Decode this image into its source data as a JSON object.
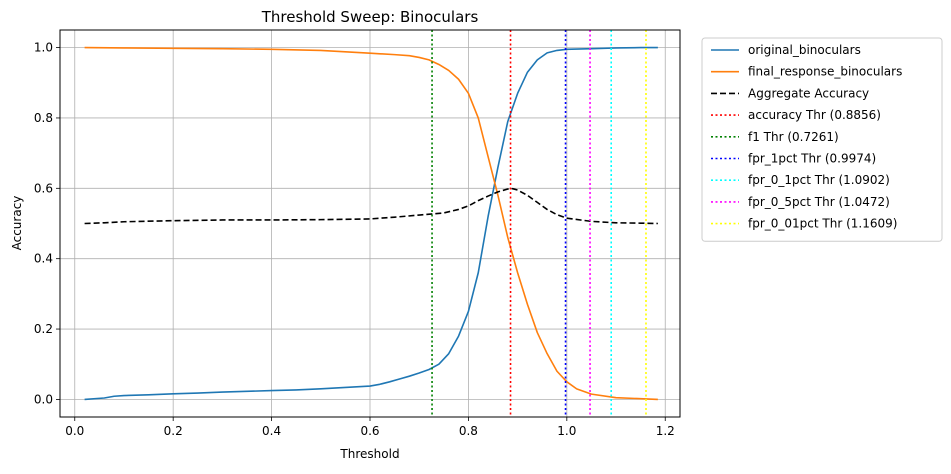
{
  "chart_data": {
    "type": "line",
    "title": "Threshold Sweep: Binoculars",
    "xlabel": "Threshold",
    "ylabel": "Accuracy",
    "xlim": [
      -0.03,
      1.23
    ],
    "ylim": [
      -0.05,
      1.05
    ],
    "x_ticks": [
      0.0,
      0.2,
      0.4,
      0.6,
      0.8,
      1.0,
      1.2
    ],
    "x_tick_labels": [
      "0.0",
      "0.2",
      "0.4",
      "0.6",
      "0.8",
      "1.0",
      "1.2"
    ],
    "y_ticks": [
      0.0,
      0.2,
      0.4,
      0.6,
      0.8,
      1.0
    ],
    "y_tick_labels": [
      "0.0",
      "0.2",
      "0.4",
      "0.6",
      "0.8",
      "1.0"
    ],
    "grid": true,
    "legend_position": "outside-right-top",
    "series": [
      {
        "name": "original_binoculars",
        "color": "#1f77b4",
        "style": "solid",
        "x": [
          0.02,
          0.06,
          0.08,
          0.1,
          0.15,
          0.2,
          0.25,
          0.3,
          0.35,
          0.4,
          0.45,
          0.5,
          0.55,
          0.6,
          0.62,
          0.64,
          0.66,
          0.68,
          0.7,
          0.72,
          0.74,
          0.76,
          0.78,
          0.8,
          0.82,
          0.84,
          0.86,
          0.88,
          0.9,
          0.92,
          0.94,
          0.96,
          0.98,
          1.0,
          1.05,
          1.1,
          1.15,
          1.185
        ],
        "values": [
          0.0,
          0.004,
          0.009,
          0.011,
          0.013,
          0.016,
          0.018,
          0.021,
          0.023,
          0.025,
          0.027,
          0.03,
          0.034,
          0.038,
          0.043,
          0.05,
          0.058,
          0.066,
          0.075,
          0.085,
          0.1,
          0.13,
          0.18,
          0.25,
          0.36,
          0.52,
          0.66,
          0.79,
          0.87,
          0.93,
          0.965,
          0.985,
          0.992,
          0.995,
          0.997,
          0.999,
          1.0,
          1.0
        ]
      },
      {
        "name": "final_response_binoculars",
        "color": "#ff7f0e",
        "style": "solid",
        "x": [
          0.02,
          0.1,
          0.2,
          0.3,
          0.4,
          0.5,
          0.55,
          0.6,
          0.65,
          0.68,
          0.7,
          0.72,
          0.74,
          0.76,
          0.78,
          0.8,
          0.82,
          0.84,
          0.86,
          0.88,
          0.9,
          0.92,
          0.94,
          0.96,
          0.98,
          1.0,
          1.02,
          1.05,
          1.1,
          1.15,
          1.185
        ],
        "values": [
          1.0,
          0.999,
          0.998,
          0.997,
          0.995,
          0.992,
          0.988,
          0.984,
          0.98,
          0.977,
          0.972,
          0.965,
          0.952,
          0.935,
          0.91,
          0.87,
          0.8,
          0.69,
          0.58,
          0.46,
          0.36,
          0.27,
          0.19,
          0.13,
          0.08,
          0.05,
          0.03,
          0.015,
          0.005,
          0.002,
          0.0
        ]
      },
      {
        "name": "Aggregate Accuracy",
        "color": "#000000",
        "style": "dashed",
        "x": [
          0.02,
          0.06,
          0.1,
          0.2,
          0.3,
          0.4,
          0.5,
          0.6,
          0.65,
          0.7,
          0.75,
          0.78,
          0.8,
          0.82,
          0.84,
          0.86,
          0.88,
          0.89,
          0.9,
          0.92,
          0.94,
          0.96,
          0.98,
          1.0,
          1.05,
          1.1,
          1.15,
          1.185
        ],
        "values": [
          0.5,
          0.502,
          0.505,
          0.508,
          0.51,
          0.51,
          0.511,
          0.513,
          0.518,
          0.524,
          0.53,
          0.54,
          0.55,
          0.565,
          0.578,
          0.59,
          0.598,
          0.599,
          0.595,
          0.58,
          0.56,
          0.54,
          0.525,
          0.515,
          0.506,
          0.502,
          0.501,
          0.5
        ]
      }
    ],
    "vlines": [
      {
        "name": "accuracy Thr (0.8856)",
        "x": 0.8856,
        "color": "#ff0000"
      },
      {
        "name": "f1 Thr (0.7261)",
        "x": 0.7261,
        "color": "#008000"
      },
      {
        "name": "fpr_1pct Thr (0.9974)",
        "x": 0.9974,
        "color": "#0000ff"
      },
      {
        "name": "fpr_0_1pct Thr (1.0902)",
        "x": 1.0902,
        "color": "#00ffff"
      },
      {
        "name": "fpr_0_5pct Thr (1.0472)",
        "x": 1.0472,
        "color": "#ff00ff"
      },
      {
        "name": "fpr_0_01pct Thr (1.1609)",
        "x": 1.1609,
        "color": "#ffff00"
      }
    ]
  }
}
